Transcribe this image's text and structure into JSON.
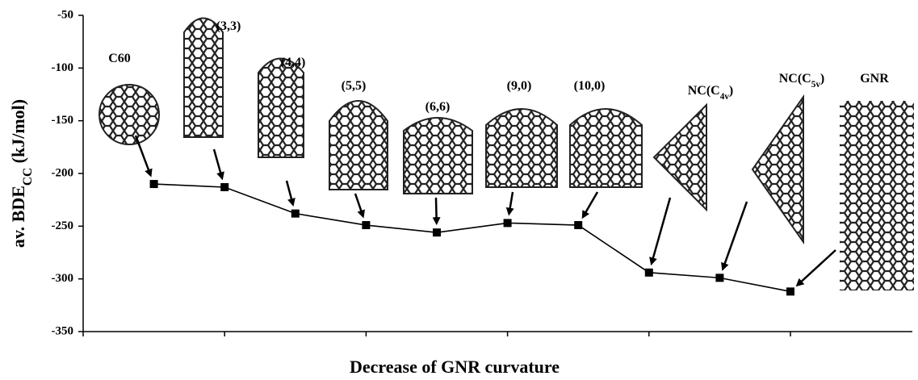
{
  "chart_data": {
    "type": "line",
    "xlabel": "Decrease of GNR curvature",
    "ylabel": "av. BDECC (kJ/mol)",
    "categories": [
      "C60",
      "(3,3)",
      "(4,4)",
      "(5,5)",
      "(6,6)",
      "(9,0)",
      "(10,0)",
      "NC(C4v)",
      "NC(C5v)",
      "GNR"
    ],
    "series": [
      {
        "color": "#000000",
        "values": [
          -210,
          -213,
          -238,
          -249,
          -256,
          -247,
          -249,
          -294,
          -299,
          -312
        ]
      }
    ],
    "ylim": [
      -350,
      -50
    ],
    "yticks": [
      -350,
      -300,
      -250,
      -200,
      -150,
      -100,
      -50
    ]
  }
}
